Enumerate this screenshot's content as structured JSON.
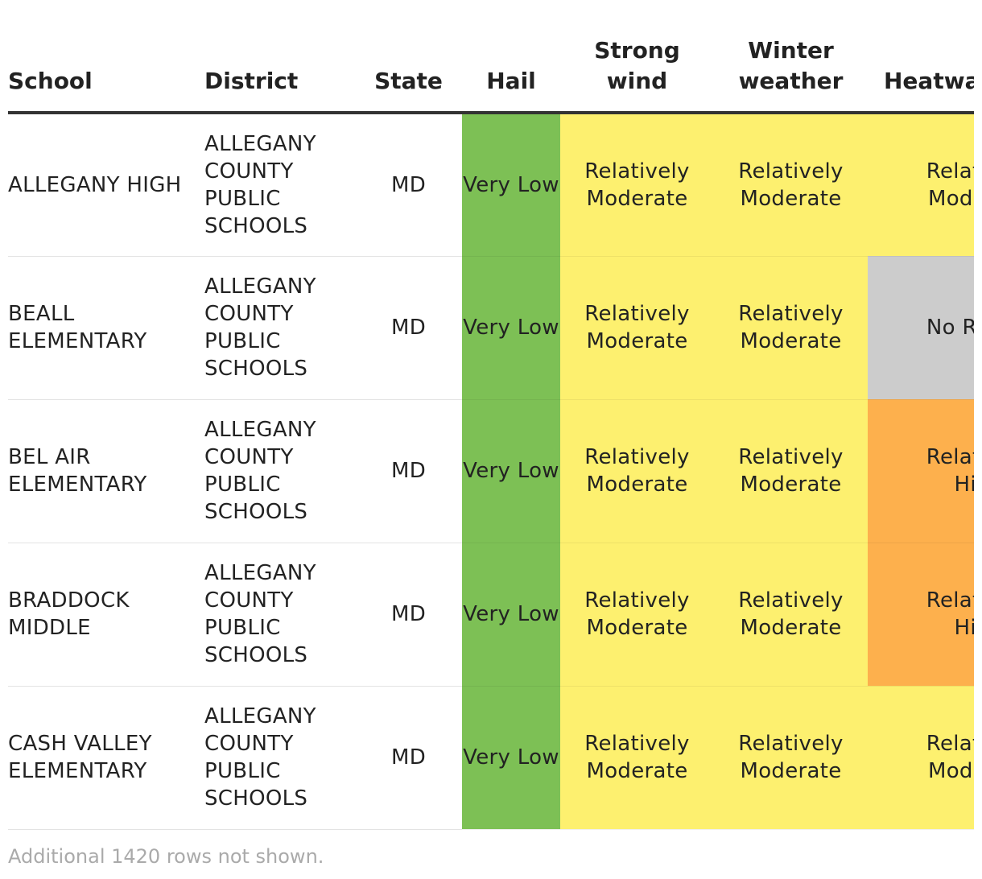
{
  "headers": {
    "school": "School",
    "district": "District",
    "state": "State",
    "hail": "Hail",
    "strong_wind": "Strong wind",
    "winter_weather": "Winter weather",
    "heatwave": "Heatwave"
  },
  "rows": [
    {
      "school": "ALLEGANY HIGH",
      "district": "ALLEGANY COUNTY PUBLIC SCHOOLS",
      "state": "MD",
      "hail": "Very Low",
      "strong_wind": "Relatively Moderate",
      "winter_weather": "Relatively Moderate",
      "heatwave": "Relatively Moderate"
    },
    {
      "school": "BEALL ELEMENTARY",
      "district": "ALLEGANY COUNTY PUBLIC SCHOOLS",
      "state": "MD",
      "hail": "Very Low",
      "strong_wind": "Relatively Moderate",
      "winter_weather": "Relatively Moderate",
      "heatwave": "No Rating"
    },
    {
      "school": "BEL AIR ELEMENTARY",
      "district": "ALLEGANY COUNTY PUBLIC SCHOOLS",
      "state": "MD",
      "hail": "Very Low",
      "strong_wind": "Relatively Moderate",
      "winter_weather": "Relatively Moderate",
      "heatwave": "Relatively High"
    },
    {
      "school": "BRADDOCK MIDDLE",
      "district": "ALLEGANY COUNTY PUBLIC SCHOOLS",
      "state": "MD",
      "hail": "Very Low",
      "strong_wind": "Relatively Moderate",
      "winter_weather": "Relatively Moderate",
      "heatwave": "Relatively High"
    },
    {
      "school": "CASH VALLEY ELEMENTARY",
      "district": "ALLEGANY COUNTY PUBLIC SCHOOLS",
      "state": "MD",
      "hail": "Very Low",
      "strong_wind": "Relatively Moderate",
      "winter_weather": "Relatively Moderate",
      "heatwave": "Relatively Moderate"
    }
  ],
  "rating_colors": {
    "Very Low": "#7dc055",
    "Relatively Moderate": "#fdf06f",
    "Relatively High": "#fdb04d",
    "No Rating": "#cccccc"
  },
  "footnote": "Additional 1420 rows not shown."
}
